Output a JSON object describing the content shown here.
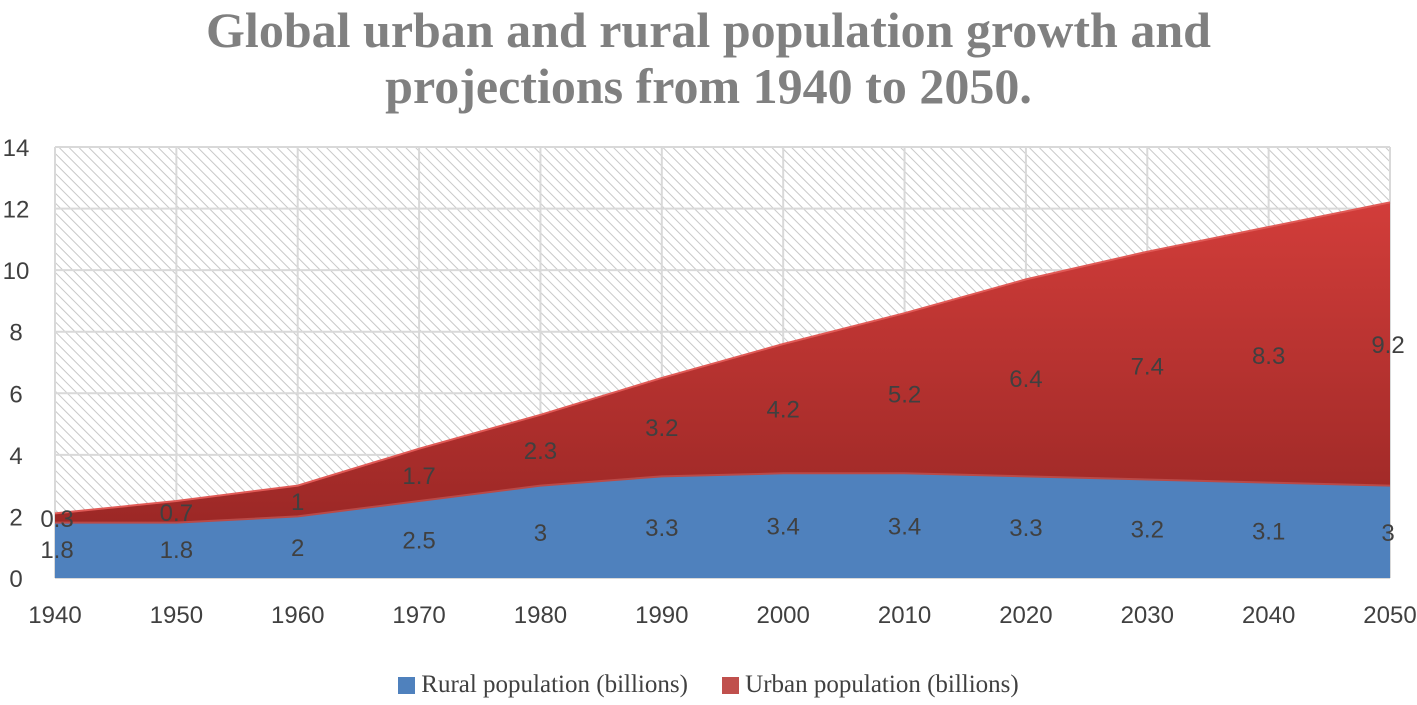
{
  "chart_data": {
    "type": "area",
    "stacked": true,
    "title_lines": [
      "Global urban and rural population growth and",
      "projections from 1940 to 2050."
    ],
    "x": [
      "1940",
      "1950",
      "1960",
      "1970",
      "1980",
      "1990",
      "2000",
      "2010",
      "2020",
      "2030",
      "2040",
      "2050"
    ],
    "series": [
      {
        "name": "Rural population (billions)",
        "color": "#4f81bd",
        "values": [
          1.8,
          1.8,
          2,
          2.5,
          3,
          3.3,
          3.4,
          3.4,
          3.3,
          3.2,
          3.1,
          3
        ],
        "labels": [
          "1.8",
          "1.8",
          "2",
          "2.5",
          "3",
          "3.3",
          "3.4",
          "3.4",
          "3.3",
          "3.2",
          "3.1",
          "3"
        ]
      },
      {
        "name": "Urban population (billions)",
        "color": "#c0504d",
        "values": [
          0.3,
          0.7,
          1,
          1.7,
          2.3,
          3.2,
          4.2,
          5.2,
          6.4,
          7.4,
          8.3,
          9.2
        ],
        "labels": [
          "0.3",
          "0.7",
          "1",
          "1.7",
          "2.3",
          "3.2",
          "4.2",
          "5.2",
          "6.4",
          "7.4",
          "8.3",
          "9.2"
        ]
      }
    ],
    "ylim": [
      0,
      14
    ],
    "yticks": [
      "0",
      "2",
      "4",
      "6",
      "8",
      "10",
      "12",
      "14"
    ],
    "grid": true,
    "legend": "bottom"
  }
}
